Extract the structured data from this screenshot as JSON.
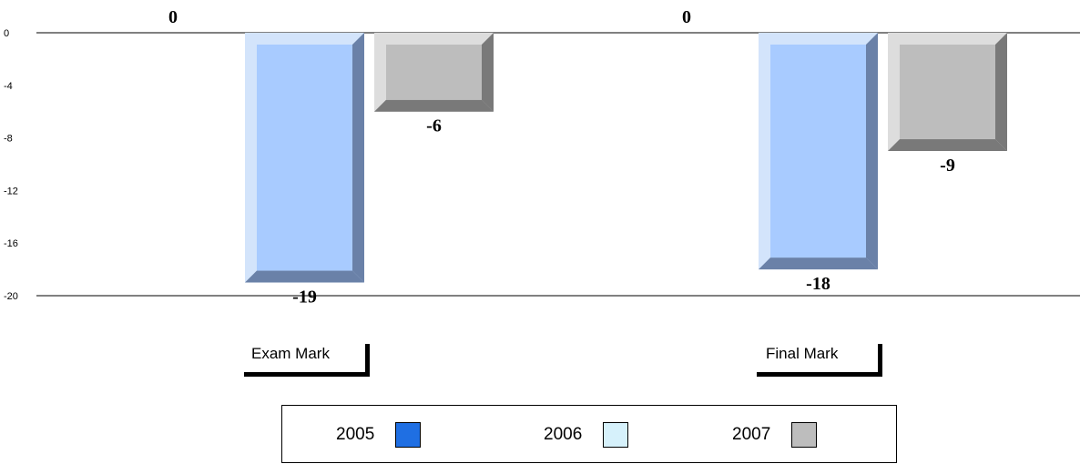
{
  "chart_data": {
    "type": "bar",
    "categories": [
      "Exam Mark",
      "Final Mark"
    ],
    "series": [
      {
        "name": "2005",
        "values": [
          0,
          0
        ],
        "color": "#1f6fe3"
      },
      {
        "name": "2006",
        "values": [
          -19,
          -18
        ],
        "color": "#a8cbff"
      },
      {
        "name": "2007",
        "values": [
          -6,
          -9
        ],
        "color": "#bdbdbd"
      }
    ],
    "data_labels": [
      [
        "0",
        "0"
      ],
      [
        "-19",
        "-18"
      ],
      [
        "-6",
        "-9"
      ]
    ],
    "yticks": [
      "0",
      "-4",
      "-8",
      "-12",
      "-16",
      "-20"
    ],
    "ylim": [
      -20,
      0
    ],
    "title": "",
    "xlabel": "",
    "ylabel": "",
    "grid": false,
    "legend_position": "bottom"
  },
  "legend": {
    "items": [
      {
        "label": "2005",
        "color": "#1f6fe3"
      },
      {
        "label": "2006",
        "color": "#d6f1fb"
      },
      {
        "label": "2007",
        "color": "#bdbdbd"
      }
    ]
  }
}
